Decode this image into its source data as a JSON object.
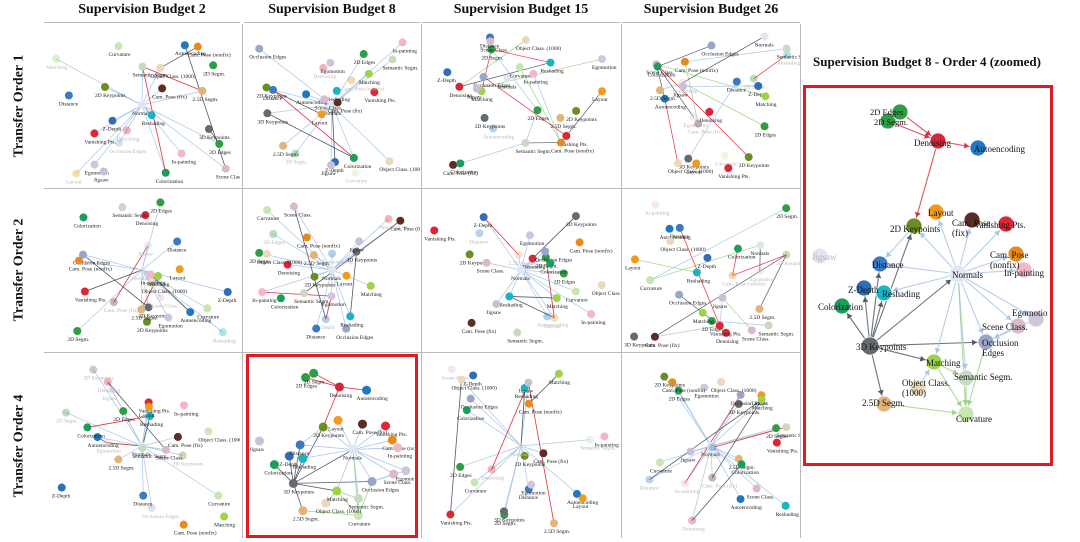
{
  "column_titles": [
    "Supervision Budget 2",
    "Supervision Budget 8",
    "Supervision Budget 15",
    "Supervision Budget 26"
  ],
  "row_titles": [
    "Transfer Order 1",
    "Transfer Order 2",
    "Transfer Order 4"
  ],
  "zoom_title": "Supervision Budget 8 - Order 4 (zoomed)",
  "colors": {
    "highlight": "#e21a22",
    "edge": "#a9c6e6",
    "dark_edge": "#555c66",
    "red_edge": "#e03040",
    "green_edge": "#9fd38a"
  },
  "nodes": {
    "denoising": {
      "label": "Denoising",
      "color": "#d62738"
    },
    "autoencoding": {
      "label": "Autoencoding",
      "color": "#1f78c1"
    },
    "edges2d": {
      "label": "2D Edges",
      "color": "#2e9e44"
    },
    "segm2d": {
      "label": "2D Segm.",
      "color": "#2e9e44"
    },
    "keypoints2d": {
      "label": "2D Keypoints",
      "color": "#6b8e23"
    },
    "keypoints3d": {
      "label": "3D Keypoints",
      "color": "#666a70"
    },
    "segm25d": {
      "label": "2.5D Segm.",
      "color": "#e3b47a"
    },
    "occlusion": {
      "label": "Occlusion Edges",
      "color": "#9aa6c8"
    },
    "normals": {
      "label": "Normals",
      "color": "#dfe8f2"
    },
    "reshading": {
      "label": "Reshading",
      "color": "#19b3c4"
    },
    "zdepth": {
      "label": "Z-Depth",
      "color": "#2f6db5"
    },
    "distance": {
      "label": "Distance",
      "color": "#3b79c4"
    },
    "curvature": {
      "label": "Curvature",
      "color": "#c8e6b0"
    },
    "semantic": {
      "label": "Semantic Segm.",
      "color": "#c9d9c2"
    },
    "scene": {
      "label": "Scene Class.",
      "color": "#d9b9cc"
    },
    "objclass": {
      "label": "Object Class. (1000)",
      "color": "#ead9ba"
    },
    "egomotion": {
      "label": "Egomotion",
      "color": "#cfc6dc"
    },
    "vanishing": {
      "label": "Vanishing Pts.",
      "color": "#e02535"
    },
    "camfix": {
      "label": "Cam. Pose (fix)",
      "color": "#5a2d25"
    },
    "camnonfix": {
      "label": "Cam. Pose (nonfix)",
      "color": "#e88a1c"
    },
    "layout": {
      "label": "Layout",
      "color": "#f29a1a"
    },
    "inpainting": {
      "label": "In-painting",
      "color": "#f2b6c4"
    },
    "colorization": {
      "label": "Colorization",
      "color": "#1a9e5a"
    },
    "matching": {
      "label": "Matching",
      "color": "#9fd24b"
    },
    "jigsaw": {
      "label": "Jigsaw",
      "color": "#c9c0d8"
    }
  },
  "zoomed": {
    "nodes": [
      "denoising",
      "autoencoding",
      "edges2d",
      "segm2d",
      "keypoints2d",
      "keypoints3d",
      "segm25d",
      "occlusion",
      "normals",
      "reshading",
      "zdepth",
      "distance",
      "curvature",
      "semantic",
      "scene",
      "objclass",
      "egomotion",
      "vanishing",
      "camfix",
      "camnonfix",
      "layout",
      "inpainting",
      "colorization",
      "matching",
      "jigsaw"
    ],
    "edges": [
      [
        "edges2d",
        "denoising"
      ],
      [
        "segm2d",
        "denoising"
      ],
      [
        "denoising",
        "autoencoding"
      ],
      [
        "denoising",
        "keypoints2d"
      ],
      [
        "keypoints3d",
        "distance"
      ],
      [
        "keypoints3d",
        "zdepth"
      ],
      [
        "keypoints3d",
        "reshading"
      ],
      [
        "keypoints3d",
        "keypoints2d"
      ],
      [
        "keypoints3d",
        "segm25d"
      ],
      [
        "keypoints3d",
        "occlusion"
      ],
      [
        "keypoints3d",
        "matching"
      ],
      [
        "keypoints3d",
        "normals"
      ],
      [
        "keypoints3d",
        "colorization"
      ],
      [
        "keypoints2d",
        "distance"
      ],
      [
        "normals",
        "distance"
      ],
      [
        "normals",
        "reshading"
      ],
      [
        "normals",
        "layout"
      ],
      [
        "normals",
        "camfix"
      ],
      [
        "normals",
        "vanishing"
      ],
      [
        "normals",
        "camnonfix"
      ],
      [
        "normals",
        "inpainting"
      ],
      [
        "normals",
        "egomotion"
      ],
      [
        "normals",
        "scene"
      ],
      [
        "normals",
        "occlusion"
      ],
      [
        "normals",
        "semantic"
      ],
      [
        "normals",
        "curvature"
      ],
      [
        "normals",
        "keypoints2d"
      ],
      [
        "normals",
        "matching"
      ],
      [
        "matching",
        "semantic"
      ],
      [
        "matching",
        "curvature"
      ],
      [
        "semantic",
        "curvature"
      ],
      [
        "segm25d",
        "curvature"
      ],
      [
        "occlusion",
        "curvature"
      ],
      [
        "scene",
        "occlusion"
      ],
      [
        "egomotion",
        "occlusion"
      ],
      [
        "objclass",
        "matching"
      ]
    ]
  }
}
